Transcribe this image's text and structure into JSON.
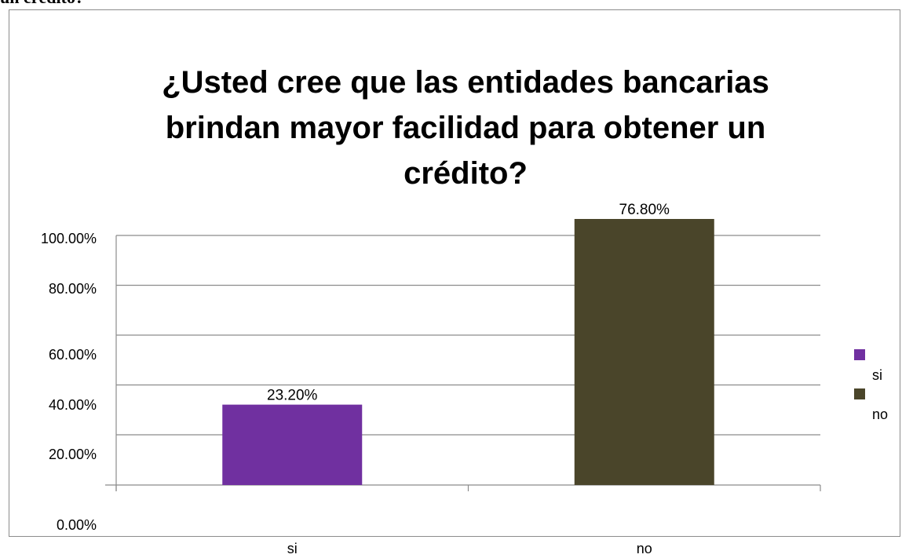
{
  "header_fragment": "un crédito?",
  "chart_data": {
    "type": "bar",
    "title": "¿Usted cree que las entidades bancarias brindan mayor facilidad para obtener un crédito?",
    "title_lines": [
      "¿Usted cree que las entidades bancarias",
      "brindan mayor facilidad para obtener un",
      "crédito?"
    ],
    "categories": [
      "si",
      "no"
    ],
    "values": [
      23.2,
      76.8
    ],
    "value_labels": [
      "23.20%",
      "76.80%"
    ],
    "colors": [
      "#7030a0",
      "#4a452a"
    ],
    "ylim": [
      0,
      100
    ],
    "yticks": [
      "0.00%",
      "20.00%",
      "40.00%",
      "60.00%",
      "80.00%",
      "100.00%"
    ],
    "xlabel": "",
    "ylabel": "",
    "grid": true,
    "legend": {
      "position": "right",
      "entries": [
        {
          "label": "si",
          "color": "#7030a0"
        },
        {
          "label": "no",
          "color": "#4a452a"
        }
      ]
    }
  }
}
